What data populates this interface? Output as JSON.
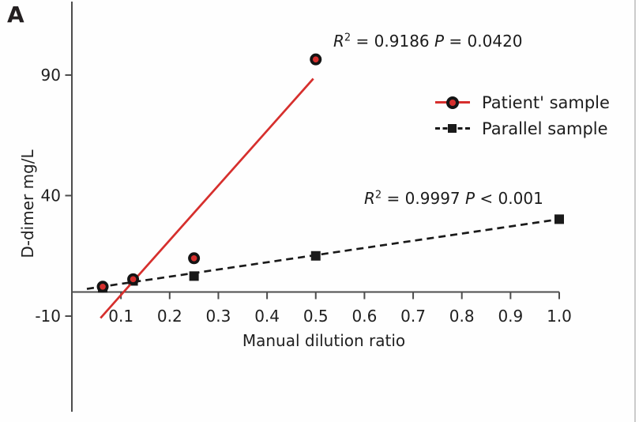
{
  "panel_label": "A",
  "annotations": {
    "patient": {
      "r": "R",
      "sup": "2",
      "mid": " = 0.9186 ",
      "p": "P",
      "tail": " = 0.0420"
    },
    "parallel": {
      "r": "R",
      "sup": "2",
      "mid": " = 0.9997 ",
      "p": "P",
      "tail": " < 0.001"
    }
  },
  "chart_data": {
    "type": "scatter",
    "title": "",
    "xlabel": "Manual dilution ratio",
    "ylabel": "D-dimer mg/L",
    "xlim": [
      0,
      1.0
    ],
    "ylim": [
      -10,
      100
    ],
    "grid": false,
    "legend_position": "upper right",
    "axis_color": "#4d4d4d",
    "text_color": "#1f1f1f",
    "x_ticks": [
      {
        "v": 0.1,
        "label": "0.1"
      },
      {
        "v": 0.2,
        "label": "0.2"
      },
      {
        "v": 0.3,
        "label": "0.3"
      },
      {
        "v": 0.4,
        "label": "0.4"
      },
      {
        "v": 0.5,
        "label": "0.5"
      },
      {
        "v": 0.6,
        "label": "0.6"
      },
      {
        "v": 0.7,
        "label": "0.7"
      },
      {
        "v": 0.8,
        "label": "0.8"
      },
      {
        "v": 0.9,
        "label": "0.9"
      },
      {
        "v": 1.0,
        "label": "1.0"
      }
    ],
    "y_ticks": [
      {
        "v": 90,
        "label": "90"
      },
      {
        "v": 40,
        "label": "40"
      },
      {
        "v": -10,
        "label": "-10"
      }
    ],
    "series": [
      {
        "name": "Patient' sample",
        "marker": "circle",
        "line": "solid",
        "color": "#d62f2d",
        "ring_color": "#141414",
        "points": [
          [
            0.0625,
            2.2
          ],
          [
            0.125,
            5.3
          ],
          [
            0.25,
            14
          ],
          [
            0.5,
            96.5
          ]
        ],
        "fit_line": {
          "from": [
            0.058,
            -10.8
          ],
          "to": [
            0.495,
            88.5
          ]
        },
        "r2": "0.9186",
        "p_value": "0.0420"
      },
      {
        "name": "Parallel sample",
        "marker": "square",
        "line": "dashed",
        "color": "#1a1a1a",
        "points": [
          [
            0.0625,
            1.7
          ],
          [
            0.125,
            4.6
          ],
          [
            0.25,
            6.6
          ],
          [
            0.5,
            15
          ],
          [
            1.0,
            30.2
          ]
        ],
        "fit_line": {
          "from": [
            0.03,
            1.3
          ],
          "to": [
            1.0,
            30.2
          ]
        },
        "r2": "0.9997",
        "p_value": "< 0.001"
      }
    ]
  }
}
